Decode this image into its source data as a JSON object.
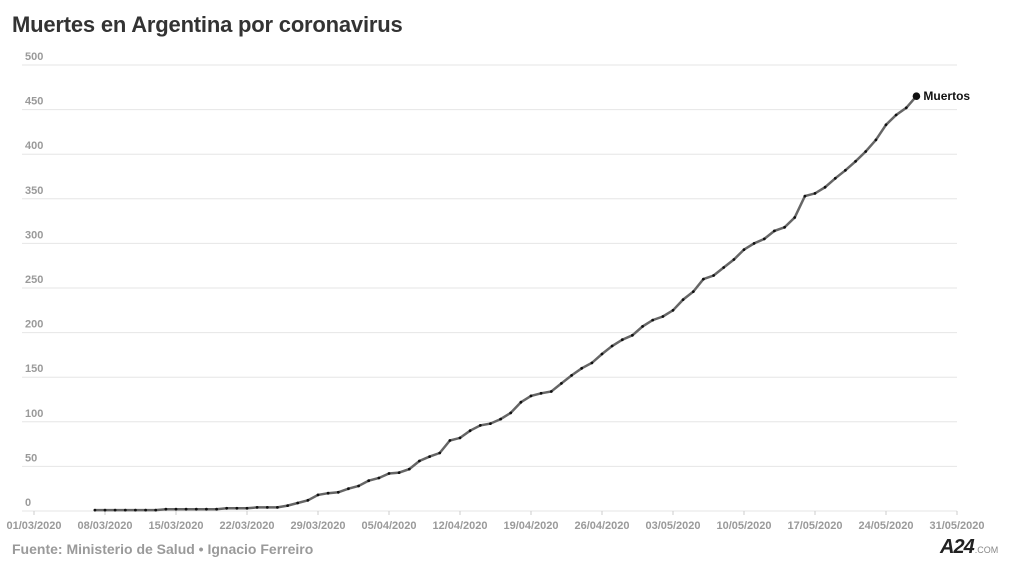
{
  "header": {
    "title": "Muertes en Argentina por coronavirus"
  },
  "footer": {
    "source": "Fuente: Ministerio de Salud • Ignacio Ferreiro"
  },
  "logo": {
    "text": "A24",
    "suffix": ".COM"
  },
  "colors": {
    "line": "#666666",
    "points": "#111111",
    "grid": "#e6e6e6",
    "text_muted": "#9a9a9a"
  },
  "chart_data": {
    "type": "line",
    "title": "Muertes en Argentina por coronavirus",
    "xlabel": "",
    "ylabel": "",
    "ylim": [
      0,
      500
    ],
    "yticks": [
      0,
      50,
      100,
      150,
      200,
      250,
      300,
      350,
      400,
      450,
      500
    ],
    "xlim": [
      "2020-03-01",
      "2020-05-31"
    ],
    "xticks": [
      "01/03/2020",
      "08/03/2020",
      "15/03/2020",
      "22/03/2020",
      "29/03/2020",
      "05/04/2020",
      "12/04/2020",
      "19/04/2020",
      "26/04/2020",
      "03/05/2020",
      "10/05/2020",
      "17/05/2020",
      "24/05/2020",
      "31/05/2020"
    ],
    "grid": true,
    "legend": "none",
    "series": [
      {
        "name": "Muertos",
        "x_start": "2020-03-07",
        "values": [
          1,
          1,
          1,
          1,
          1,
          1,
          1,
          2,
          2,
          2,
          2,
          2,
          2,
          3,
          3,
          3,
          4,
          4,
          4,
          6,
          9,
          12,
          18,
          20,
          21,
          25,
          28,
          34,
          37,
          42,
          43,
          47,
          56,
          61,
          65,
          79,
          82,
          90,
          96,
          98,
          103,
          110,
          122,
          129,
          132,
          134,
          143,
          152,
          160,
          166,
          176,
          185,
          192,
          197,
          207,
          214,
          218,
          225,
          237,
          246,
          260,
          264,
          273,
          282,
          293,
          300,
          305,
          314,
          318,
          329,
          353,
          356,
          363,
          373,
          382,
          392,
          403,
          416,
          433,
          444,
          452,
          465
        ]
      }
    ]
  }
}
